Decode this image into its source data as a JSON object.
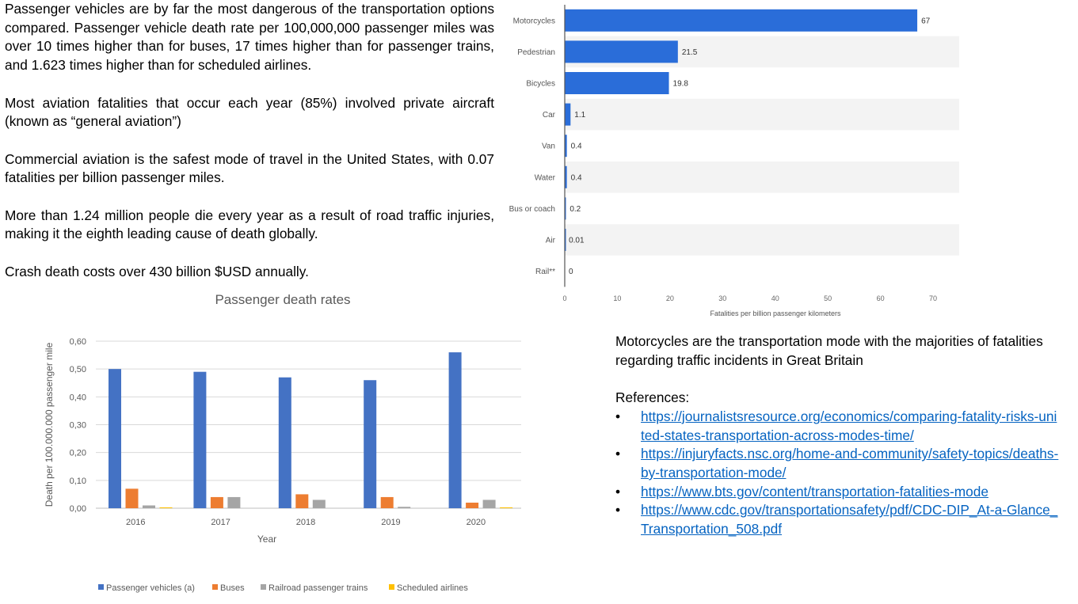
{
  "paragraphs": [
    "Passenger vehicles are by far the most dangerous of the transportation options compared. Passenger vehicle death rate per 100,000,000 passenger miles was over 10 times higher than for buses, 17 times higher than for passenger trains, and 1.623 times higher than for scheduled airlines.",
    "Most aviation fatalities that occur each year (85%) involved private aircraft (known as “general aviation”)",
    "Commercial aviation is the safest mode of travel in the United States, with 0.07 fatalities per billion passenger miles.",
    "More than 1.24 million people die every year as a result of road traffic injuries, making it the eighth leading cause of death globally.",
    "Crash death costs over 430 billion $USD annually."
  ],
  "right_note": "Motorcycles are the transportation mode with the majorities of fatalities regarding traffic incidents in Great Britain",
  "references": {
    "title": "References:",
    "bullet": "•",
    "items": [
      "https://journalistsresource.org/economics/comparing-fatality-risks-united-states-transportation-across-modes-time/",
      "https://injuryfacts.nsc.org/home-and-community/safety-topics/deaths-by-transportation-mode/",
      "https://www.bts.gov/content/transportation-fatalities-mode",
      "https://www.cdc.gov/transportationsafety/pdf/CDC-DIP_At-a-Glance_Transportation_508.pdf"
    ]
  },
  "chart_data": [
    {
      "type": "bar",
      "orientation": "horizontal",
      "title": "",
      "categories": [
        "Motorcycles",
        "Pedestrian",
        "Bicycles",
        "Car",
        "Van",
        "Water",
        "Bus or coach",
        "Air",
        "Rail**"
      ],
      "values": [
        67,
        21.5,
        19.8,
        1.1,
        0.4,
        0.4,
        0.2,
        0.01,
        0
      ],
      "value_labels": [
        "67",
        "21.5",
        "19.8",
        "1.1",
        "0.4",
        "0.4",
        "0.2",
        "0.01",
        "0"
      ],
      "xlabel": "Fatalities per billion passenger kilometers",
      "ylabel": "",
      "xlim": [
        0,
        70
      ],
      "xticks": [
        0,
        10,
        20,
        30,
        40,
        50,
        60,
        70
      ],
      "bar_color": "#2a6dd9",
      "row_band_color": "#f3f3f3",
      "grid": false
    },
    {
      "type": "bar",
      "orientation": "vertical",
      "title": "Passenger death rates",
      "categories": [
        "2016",
        "2017",
        "2018",
        "2019",
        "2020"
      ],
      "series": [
        {
          "name": "Passenger vehicles (a)",
          "color": "#4472c4",
          "values": [
            0.5,
            0.49,
            0.47,
            0.46,
            0.56
          ]
        },
        {
          "name": "Buses",
          "color": "#ed7d31",
          "values": [
            0.07,
            0.04,
            0.05,
            0.04,
            0.02
          ]
        },
        {
          "name": "Railroad passenger trains",
          "color": "#a5a5a5",
          "values": [
            0.01,
            0.04,
            0.03,
            0.005,
            0.03
          ]
        },
        {
          "name": "Scheduled airlines",
          "color": "#ffc000",
          "values": [
            0.003,
            0.0,
            0.0,
            0.0,
            0.003
          ]
        }
      ],
      "xlabel": "Year",
      "ylabel": "Death per 100.000.000 passenger mile",
      "ylim": [
        0,
        0.6
      ],
      "yticks": [
        "0,00",
        "0,10",
        "0,20",
        "0,30",
        "0,40",
        "0,50",
        "0,60"
      ],
      "grid": true,
      "legend_position": "bottom"
    }
  ]
}
